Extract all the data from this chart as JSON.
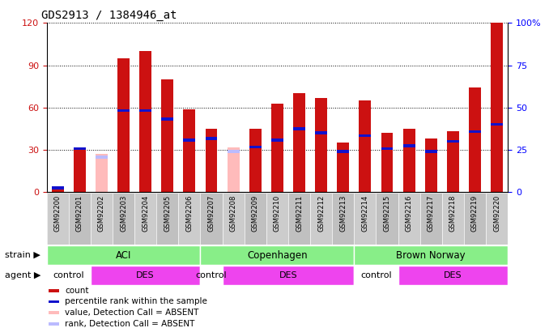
{
  "title": "GDS2913 / 1384946_at",
  "samples": [
    "GSM92200",
    "GSM92201",
    "GSM92202",
    "GSM92203",
    "GSM92204",
    "GSM92205",
    "GSM92206",
    "GSM92207",
    "GSM92208",
    "GSM92209",
    "GSM92210",
    "GSM92211",
    "GSM92212",
    "GSM92213",
    "GSM92214",
    "GSM92215",
    "GSM92216",
    "GSM92217",
    "GSM92218",
    "GSM92219",
    "GSM92220"
  ],
  "count": [
    2,
    30,
    0,
    95,
    100,
    80,
    59,
    45,
    0,
    45,
    63,
    70,
    67,
    35,
    65,
    42,
    45,
    38,
    43,
    74,
    120
  ],
  "rank": [
    3,
    31,
    0,
    58,
    58,
    52,
    37,
    38,
    0,
    32,
    37,
    45,
    42,
    29,
    40,
    31,
    33,
    29,
    36,
    43,
    48
  ],
  "absent_count": [
    0,
    0,
    27,
    0,
    0,
    0,
    0,
    0,
    32,
    0,
    0,
    0,
    0,
    0,
    0,
    0,
    0,
    0,
    0,
    0,
    0
  ],
  "absent_rank": [
    3,
    0,
    25,
    0,
    0,
    0,
    0,
    0,
    29,
    0,
    0,
    0,
    0,
    0,
    0,
    0,
    0,
    0,
    0,
    0,
    0
  ],
  "strains": [
    {
      "label": "ACI",
      "start": 0,
      "end": 7
    },
    {
      "label": "Copenhagen",
      "start": 7,
      "end": 14
    },
    {
      "label": "Brown Norway",
      "start": 14,
      "end": 21
    }
  ],
  "agents": [
    {
      "label": "control",
      "start": 0,
      "end": 2,
      "color": "#ffffff"
    },
    {
      "label": "DES",
      "start": 2,
      "end": 7,
      "color": "#ee44ee"
    },
    {
      "label": "control",
      "start": 7,
      "end": 8,
      "color": "#ffffff"
    },
    {
      "label": "DES",
      "start": 8,
      "end": 14,
      "color": "#ee44ee"
    },
    {
      "label": "control",
      "start": 14,
      "end": 16,
      "color": "#ffffff"
    },
    {
      "label": "DES",
      "start": 16,
      "end": 21,
      "color": "#ee44ee"
    }
  ],
  "ylim_left": [
    0,
    120
  ],
  "ylim_right": [
    0,
    100
  ],
  "yticks_left": [
    0,
    30,
    60,
    90,
    120
  ],
  "yticks_right": [
    0,
    25,
    50,
    75,
    100
  ],
  "bar_color_red": "#cc1111",
  "bar_color_blue": "#1111cc",
  "bar_color_pink": "#ffbbbb",
  "bar_color_lightblue": "#bbbbff",
  "strain_color": "#88ee88",
  "xticklabel_bg": "#cccccc"
}
